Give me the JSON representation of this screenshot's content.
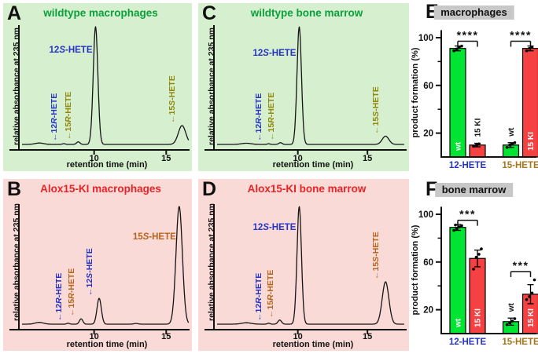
{
  "chart_data": [
    {
      "id": "A",
      "type": "line",
      "panel_letter": "A",
      "title": "wildtype macrophages",
      "title_color": "#0aa03c",
      "bg_color": "#d6efcf",
      "xlabel": "retention time (min)",
      "ylabel": "relative absorbance at 235 nm",
      "x_ticks": [
        10,
        15
      ],
      "x_range": [
        5.0,
        16.6
      ],
      "grid": false,
      "peaks": [
        {
          "name": "12*R*-HETE",
          "time": 7.9,
          "rel_height": 0.007,
          "sigma": 0.1,
          "label_color": "#2433c6",
          "label_orient": "v"
        },
        {
          "name": "15*R*-HETE",
          "time": 8.9,
          "rel_height": 0.022,
          "sigma": 0.12,
          "label_color": "#91870a",
          "label_orient": "v"
        },
        {
          "name": "12*S*-HETE",
          "time": 10.1,
          "rel_height": 1.0,
          "sigma": 0.16,
          "label_color": "#2433c6",
          "label_orient": "h",
          "label_dx": -4,
          "label_dy": 54
        },
        {
          "name": "15*S*-HETE",
          "time": 16.1,
          "rel_height": 0.16,
          "sigma": 0.26,
          "label_color": "#91870a",
          "label_orient": "v"
        }
      ],
      "unlabeled_bumps": [
        {
          "time": 6.2,
          "rel_height": 0.012,
          "sigma": 0.3
        }
      ]
    },
    {
      "id": "B",
      "type": "line",
      "panel_letter": "B",
      "title": "Alox15-KI macrophages",
      "title_color": "#ea2328",
      "bg_color": "#fadad6",
      "xlabel": "retention time (min)",
      "ylabel": "relative absorbance at 235 nm",
      "x_ticks": [
        10,
        15
      ],
      "x_range": [
        5.0,
        16.6
      ],
      "grid": false,
      "peaks": [
        {
          "name": "12*R*-HETE",
          "time": 8.2,
          "rel_height": 0.008,
          "sigma": 0.1,
          "label_color": "#2433c6",
          "label_orient": "v"
        },
        {
          "name": "15*R*-HETE",
          "time": 9.1,
          "rel_height": 0.045,
          "sigma": 0.12,
          "label_color": "#b5641c",
          "label_orient": "v"
        },
        {
          "name": "12*S*-HETE",
          "time": 10.35,
          "rel_height": 0.22,
          "sigma": 0.15,
          "label_color": "#2433c6",
          "label_orient": "v"
        },
        {
          "name": "15*S*-HETE",
          "time": 15.9,
          "rel_height": 1.0,
          "sigma": 0.22,
          "label_color": "#b5641c",
          "label_orient": "h",
          "label_dx": -4,
          "label_dy": 68
        }
      ],
      "unlabeled_bumps": [
        {
          "time": 6.2,
          "rel_height": 0.015,
          "sigma": 0.3
        },
        {
          "time": 12.9,
          "rel_height": 0.006,
          "sigma": 0.15
        }
      ]
    },
    {
      "id": "C",
      "type": "line",
      "panel_letter": "C",
      "title": "wildtype bone marrow",
      "title_color": "#0aa03c",
      "bg_color": "#d6efcf",
      "xlabel": "retention time (min)",
      "ylabel": "relative absorbance at 235 nm",
      "x_ticks": [
        10,
        15
      ],
      "x_range": [
        4.2,
        17.6
      ],
      "grid": false,
      "peaks": [
        {
          "name": "12*R*-HETE",
          "time": 7.9,
          "rel_height": 0.006,
          "sigma": 0.1,
          "label_color": "#2433c6",
          "label_orient": "v"
        },
        {
          "name": "15*R*-HETE",
          "time": 8.75,
          "rel_height": 0.015,
          "sigma": 0.12,
          "label_color": "#91870a",
          "label_orient": "v"
        },
        {
          "name": "12*S*-HETE",
          "time": 10.1,
          "rel_height": 1.0,
          "sigma": 0.16,
          "label_color": "#2433c6",
          "label_orient": "h",
          "label_dx": -4,
          "label_dy": 58
        },
        {
          "name": "15*S*-HETE",
          "time": 16.3,
          "rel_height": 0.07,
          "sigma": 0.24,
          "label_color": "#91870a",
          "label_orient": "v"
        }
      ],
      "unlabeled_bumps": [
        {
          "time": 6.3,
          "rel_height": 0.01,
          "sigma": 0.35
        }
      ]
    },
    {
      "id": "D",
      "type": "line",
      "panel_letter": "D",
      "title": "Alox15-KI bone marrow",
      "title_color": "#ea2328",
      "bg_color": "#fadad6",
      "xlabel": "retention time (min)",
      "ylabel": "relative absorbance at 235 nm",
      "x_ticks": [
        10,
        15
      ],
      "x_range": [
        4.2,
        17.6
      ],
      "grid": false,
      "peaks": [
        {
          "name": "12*R*-HETE",
          "time": 7.9,
          "rel_height": 0.008,
          "sigma": 0.1,
          "label_color": "#2433c6",
          "label_orient": "v"
        },
        {
          "name": "15*R*-HETE",
          "time": 8.7,
          "rel_height": 0.035,
          "sigma": 0.13,
          "label_color": "#b5641c",
          "label_orient": "v"
        },
        {
          "name": "12*S*-HETE",
          "time": 10.1,
          "rel_height": 1.0,
          "sigma": 0.16,
          "label_color": "#2433c6",
          "label_orient": "h",
          "label_dx": -4,
          "label_dy": 56
        },
        {
          "name": "15*S*-HETE",
          "time": 16.3,
          "rel_height": 0.36,
          "sigma": 0.24,
          "label_color": "#b5641c",
          "label_orient": "v"
        }
      ],
      "unlabeled_bumps": [
        {
          "time": 6.3,
          "rel_height": 0.012,
          "sigma": 0.35
        }
      ]
    },
    {
      "id": "E",
      "type": "bar",
      "panel_letter": "E",
      "title": "macrophages",
      "title_bg": "#c8c8c8",
      "ylabel": "product formation (%)",
      "y_ticks": [
        20,
        60,
        100
      ],
      "y_minor_ticks": [
        40,
        80
      ],
      "ylim": [
        0,
        105
      ],
      "grid": false,
      "groups": [
        {
          "label": "12-HETE",
          "label_color": "#2433c6",
          "significance": "****",
          "sig_line_y": 97,
          "bars": [
            {
              "label": "wt",
              "color": "#00e432",
              "value": 91,
              "err": 2,
              "points": [
                89,
                90.5,
                92,
                93
              ]
            },
            {
              "label": "15 KI",
              "color": "#f54141",
              "value": 10,
              "err": 1.5,
              "points": [
                9,
                10,
                11
              ]
            }
          ]
        },
        {
          "label": "15-HETE",
          "label_color": "#a8751c",
          "significance": "****",
          "sig_line_y": 97,
          "bars": [
            {
              "label": "wt",
              "color": "#00e432",
              "value": 10,
              "err": 2,
              "points": [
                8,
                10,
                11,
                12
              ]
            },
            {
              "label": "15 KI",
              "color": "#f54141",
              "value": 91,
              "err": 2,
              "points": [
                89,
                91,
                92
              ]
            }
          ]
        }
      ]
    },
    {
      "id": "F",
      "type": "bar",
      "panel_letter": "F",
      "title": "bone marrow",
      "title_bg": "#c8c8c8",
      "ylabel": "product formation (%)",
      "y_ticks": [
        20,
        60,
        100
      ],
      "y_minor_ticks": [
        40,
        80
      ],
      "ylim": [
        0,
        105
      ],
      "grid": false,
      "groups": [
        {
          "label": "12-HETE",
          "label_color": "#2433c6",
          "significance": "***",
          "sig_line_y": 95,
          "bars": [
            {
              "label": "wt",
              "color": "#00e432",
              "value": 89,
              "err": 2.5,
              "points": [
                86.5,
                88,
                89.5,
                90.5,
                91
              ]
            },
            {
              "label": "15 KI",
              "color": "#f54141",
              "value": 63,
              "err": 7,
              "points": [
                54,
                64,
                66.5,
                71
              ]
            }
          ]
        },
        {
          "label": "15-HETE",
          "label_color": "#a8751c",
          "significance": "***",
          "sig_line_y": 52,
          "bars": [
            {
              "label": "wt",
              "color": "#00e432",
              "value": 10,
              "err": 3,
              "points": [
                7.5,
                9,
                10.5,
                12.5
              ]
            },
            {
              "label": "15 KI",
              "color": "#f54141",
              "value": 33,
              "err": 8,
              "points": [
                28.5,
                31,
                34,
                45
              ]
            }
          ]
        }
      ]
    }
  ]
}
